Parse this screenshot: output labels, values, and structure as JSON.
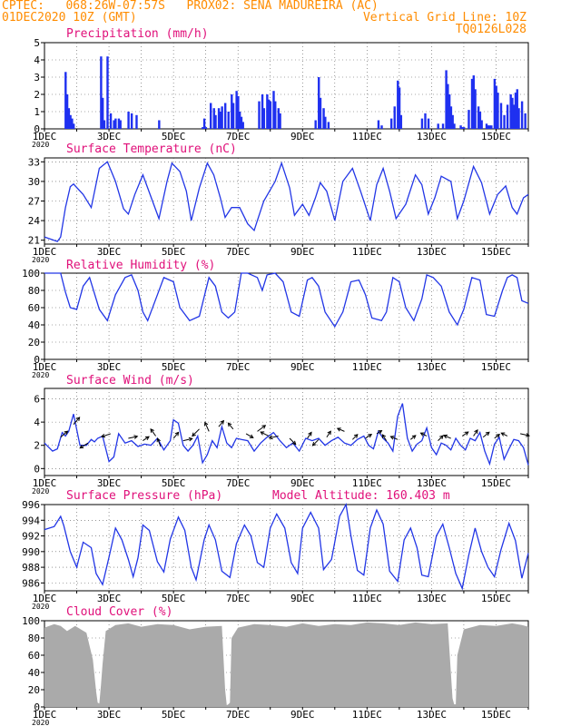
{
  "header": {
    "line1_left": "CPTEC:   068:26W-07:57S   PROX02: SENA MADUREIRA (AC)",
    "line2_left": "01DEC2020 10Z (GMT)",
    "line2_right": "Vertical Grid Line: 10Z",
    "line3_right": "TQ0126L028"
  },
  "colors": {
    "header": "#ff8c00",
    "title": "#e0107a",
    "line": "#2236e6",
    "bar": "#1f30f0",
    "cloud": "#aaaaaa",
    "frame": "#000000",
    "grid": "#555555"
  },
  "x_axis": {
    "start": "2020-12-01T10Z",
    "end": "2020-12-16T10Z",
    "tick_labels": [
      "1DEC",
      "3DEC",
      "5DEC",
      "7DEC",
      "9DEC",
      "11DEC",
      "13DEC",
      "15DEC"
    ],
    "tick_days": [
      0,
      2,
      4,
      6,
      8,
      10,
      12,
      14
    ],
    "year_label": "2020"
  },
  "chart_data": [
    {
      "id": "precip",
      "type": "bar",
      "title": "Precipitation (mm/h)",
      "ylim": [
        0,
        5
      ],
      "yticks": [
        0,
        1,
        2,
        3,
        4,
        5
      ],
      "grid": true,
      "bars": [
        [
          0.65,
          3.3
        ],
        [
          0.7,
          2.0
        ],
        [
          0.75,
          1.2
        ],
        [
          0.8,
          0.8
        ],
        [
          0.85,
          0.6
        ],
        [
          0.9,
          0.3
        ],
        [
          1.75,
          4.2
        ],
        [
          1.8,
          1.8
        ],
        [
          1.85,
          0.5
        ],
        [
          1.95,
          4.2
        ],
        [
          2.05,
          0.9
        ],
        [
          2.15,
          0.5
        ],
        [
          2.2,
          0.6
        ],
        [
          2.3,
          0.6
        ],
        [
          2.35,
          0.5
        ],
        [
          2.6,
          1.0
        ],
        [
          2.7,
          0.9
        ],
        [
          2.85,
          0.8
        ],
        [
          3.55,
          0.5
        ],
        [
          4.9,
          0.1
        ],
        [
          4.95,
          0.6
        ],
        [
          5.0,
          0.1
        ],
        [
          5.15,
          1.5
        ],
        [
          5.25,
          1.2
        ],
        [
          5.3,
          0.8
        ],
        [
          5.4,
          1.2
        ],
        [
          5.45,
          1.0
        ],
        [
          5.5,
          1.3
        ],
        [
          5.6,
          1.5
        ],
        [
          5.7,
          1.0
        ],
        [
          5.8,
          2.0
        ],
        [
          5.85,
          1.5
        ],
        [
          5.95,
          2.2
        ],
        [
          6.0,
          1.9
        ],
        [
          6.05,
          1.0
        ],
        [
          6.1,
          0.7
        ],
        [
          6.15,
          0.4
        ],
        [
          6.65,
          1.6
        ],
        [
          6.75,
          2.0
        ],
        [
          6.8,
          1.2
        ],
        [
          6.9,
          2.0
        ],
        [
          6.95,
          1.7
        ],
        [
          7.0,
          1.6
        ],
        [
          7.1,
          2.2
        ],
        [
          7.15,
          1.6
        ],
        [
          7.25,
          1.2
        ],
        [
          7.3,
          0.9
        ],
        [
          8.4,
          0.5
        ],
        [
          8.5,
          3.0
        ],
        [
          8.55,
          1.8
        ],
        [
          8.65,
          1.2
        ],
        [
          8.7,
          0.7
        ],
        [
          8.8,
          0.4
        ],
        [
          10.35,
          0.5
        ],
        [
          10.45,
          0.2
        ],
        [
          10.75,
          0.6
        ],
        [
          10.85,
          1.3
        ],
        [
          10.95,
          2.8
        ],
        [
          11.0,
          2.4
        ],
        [
          11.05,
          0.8
        ],
        [
          11.7,
          0.6
        ],
        [
          11.8,
          0.9
        ],
        [
          11.9,
          0.6
        ],
        [
          12.2,
          0.3
        ],
        [
          12.35,
          0.3
        ],
        [
          12.45,
          3.4
        ],
        [
          12.5,
          2.6
        ],
        [
          12.55,
          2.0
        ],
        [
          12.6,
          1.3
        ],
        [
          12.65,
          0.8
        ],
        [
          12.7,
          0.3
        ],
        [
          12.9,
          0.2
        ],
        [
          12.95,
          0.1
        ],
        [
          13.0,
          0.1
        ],
        [
          13.15,
          1.1
        ],
        [
          13.25,
          2.9
        ],
        [
          13.3,
          3.1
        ],
        [
          13.35,
          2.3
        ],
        [
          13.45,
          1.3
        ],
        [
          13.5,
          1.0
        ],
        [
          13.55,
          0.5
        ],
        [
          13.7,
          0.3
        ],
        [
          13.75,
          0.2
        ],
        [
          13.8,
          0.2
        ],
        [
          13.85,
          0.2
        ],
        [
          13.95,
          2.9
        ],
        [
          14.0,
          2.5
        ],
        [
          14.05,
          2.1
        ],
        [
          14.15,
          1.5
        ],
        [
          14.25,
          0.8
        ],
        [
          14.35,
          1.4
        ],
        [
          14.45,
          2.0
        ],
        [
          14.5,
          1.8
        ],
        [
          14.55,
          1.4
        ],
        [
          14.6,
          2.1
        ],
        [
          14.65,
          2.3
        ],
        [
          14.7,
          1.2
        ],
        [
          14.8,
          1.6
        ],
        [
          14.9,
          0.9
        ]
      ]
    },
    {
      "id": "temp",
      "type": "line",
      "title": "Surface Temperature (nC)",
      "ylim": [
        20.4,
        33.6
      ],
      "yticks": [
        21,
        24,
        27,
        30,
        33
      ],
      "grid": true,
      "x": [
        0,
        0.4,
        0.5,
        0.65,
        0.8,
        0.9,
        1.2,
        1.45,
        1.7,
        1.95,
        2.2,
        2.45,
        2.6,
        2.8,
        3.05,
        3.2,
        3.55,
        3.8,
        3.95,
        4.2,
        4.4,
        4.55,
        4.8,
        5.05,
        5.25,
        5.45,
        5.6,
        5.8,
        6.05,
        6.3,
        6.5,
        6.6,
        6.8,
        7.15,
        7.35,
        7.6,
        7.75,
        8.0,
        8.2,
        8.4,
        8.55,
        8.75,
        9.0,
        9.25,
        9.55,
        9.8,
        10.1,
        10.3,
        10.5,
        10.7,
        10.9,
        11.2,
        11.5,
        11.7,
        11.9,
        12.1,
        12.3,
        12.6,
        12.8,
        13.0,
        13.3,
        13.55,
        13.8,
        14.05,
        14.3,
        14.5,
        14.65,
        14.85,
        15.0
      ],
      "y": [
        21.5,
        20.8,
        21.5,
        26.0,
        29.2,
        29.6,
        28.0,
        26.0,
        32.0,
        33.0,
        30.0,
        25.8,
        25.0,
        28.0,
        31.0,
        29.0,
        24.3,
        30.0,
        32.8,
        31.5,
        28.5,
        24.0,
        29.0,
        32.8,
        31.0,
        27.5,
        24.5,
        26.0,
        26.0,
        23.5,
        22.5,
        24.0,
        27.0,
        30.0,
        32.8,
        29.0,
        24.8,
        26.5,
        24.8,
        27.5,
        29.8,
        28.5,
        24.0,
        30.0,
        32.0,
        28.5,
        24.0,
        29.5,
        32.0,
        28.5,
        24.3,
        26.5,
        31.0,
        29.5,
        25.0,
        27.5,
        30.8,
        30.0,
        24.3,
        27.0,
        32.3,
        29.8,
        25.0,
        28.0,
        29.3,
        26.0,
        25.0,
        27.5,
        28.0
      ]
    },
    {
      "id": "rh",
      "type": "line",
      "title": "Relative Humidity (%)",
      "ylim": [
        0,
        100
      ],
      "yticks": [
        0,
        20,
        40,
        60,
        80,
        100
      ],
      "grid": true,
      "x": [
        0,
        0.3,
        0.5,
        0.65,
        0.8,
        1.0,
        1.2,
        1.4,
        1.7,
        1.95,
        2.2,
        2.5,
        2.7,
        2.9,
        3.05,
        3.2,
        3.5,
        3.7,
        4.0,
        4.2,
        4.5,
        4.8,
        5.1,
        5.3,
        5.5,
        5.7,
        5.9,
        6.1,
        6.3,
        6.6,
        6.75,
        6.9,
        7.15,
        7.4,
        7.65,
        7.9,
        8.15,
        8.3,
        8.5,
        8.7,
        9.0,
        9.25,
        9.5,
        9.75,
        9.95,
        10.15,
        10.45,
        10.6,
        10.8,
        11.0,
        11.2,
        11.45,
        11.7,
        11.85,
        12.05,
        12.3,
        12.55,
        12.8,
        13.0,
        13.25,
        13.5,
        13.7,
        13.95,
        14.2,
        14.35,
        14.5,
        14.65,
        14.8,
        15.0
      ],
      "y": [
        100,
        100,
        100,
        78,
        60,
        58,
        85,
        95,
        58,
        45,
        75,
        95,
        98,
        80,
        55,
        45,
        75,
        95,
        90,
        60,
        45,
        50,
        95,
        85,
        55,
        48,
        55,
        100,
        100,
        95,
        80,
        98,
        100,
        90,
        55,
        50,
        92,
        95,
        85,
        55,
        38,
        55,
        90,
        92,
        75,
        48,
        45,
        55,
        95,
        90,
        60,
        45,
        70,
        98,
        95,
        85,
        55,
        40,
        58,
        95,
        92,
        52,
        50,
        80,
        95,
        98,
        95,
        68,
        65
      ]
    },
    {
      "id": "wind",
      "type": "line",
      "title": "Surface Wind (m/s)",
      "ylim": [
        -0.6,
        6.9
      ],
      "yticks": [
        0,
        2,
        4,
        6
      ],
      "grid": true,
      "x": [
        0,
        0.25,
        0.4,
        0.55,
        0.65,
        0.75,
        0.9,
        1.1,
        1.3,
        1.45,
        1.55,
        1.65,
        1.8,
        2.0,
        2.15,
        2.3,
        2.5,
        2.7,
        2.9,
        3.1,
        3.3,
        3.5,
        3.7,
        3.9,
        4.0,
        4.15,
        4.3,
        4.45,
        4.6,
        4.75,
        4.9,
        5.05,
        5.2,
        5.35,
        5.5,
        5.65,
        5.8,
        5.95,
        6.1,
        6.3,
        6.5,
        6.7,
        6.9,
        7.1,
        7.3,
        7.5,
        7.7,
        7.9,
        8.1,
        8.3,
        8.5,
        8.7,
        8.9,
        9.1,
        9.3,
        9.5,
        9.7,
        9.9,
        10.05,
        10.2,
        10.35,
        10.5,
        10.65,
        10.8,
        10.95,
        11.1,
        11.25,
        11.4,
        11.55,
        11.7,
        11.85,
        12.0,
        12.15,
        12.3,
        12.45,
        12.6,
        12.75,
        12.9,
        13.05,
        13.2,
        13.35,
        13.5,
        13.65,
        13.8,
        13.95,
        14.1,
        14.25,
        14.4,
        14.55,
        14.7,
        14.85,
        15.0
      ],
      "y": [
        2.2,
        1.5,
        1.7,
        3.1,
        2.8,
        3.2,
        4.7,
        2.0,
        2.0,
        2.5,
        2.3,
        2.6,
        2.8,
        0.6,
        1.0,
        3.0,
        2.2,
        2.4,
        1.9,
        2.1,
        2.0,
        2.6,
        1.6,
        2.4,
        4.2,
        3.9,
        2.0,
        1.5,
        2.0,
        2.8,
        0.5,
        1.2,
        2.4,
        1.8,
        3.6,
        2.2,
        1.8,
        2.6,
        2.5,
        2.4,
        1.5,
        2.2,
        2.7,
        3.1,
        2.4,
        1.8,
        2.2,
        1.5,
        2.6,
        2.4,
        2.6,
        2.0,
        2.4,
        2.7,
        2.2,
        2.0,
        2.5,
        2.8,
        2.0,
        1.7,
        3.2,
        2.6,
        2.2,
        1.5,
        4.5,
        5.6,
        2.6,
        1.5,
        2.1,
        2.4,
        3.5,
        1.8,
        1.2,
        2.2,
        2.0,
        1.6,
        2.6,
        2.0,
        1.6,
        2.6,
        2.4,
        3.1,
        1.5,
        0.4,
        2.1,
        2.7,
        0.8,
        1.7,
        2.5,
        2.4,
        1.8,
        0.3
      ]
    },
    {
      "id": "pressure",
      "type": "line",
      "title": "Surface Pressure (hPa)",
      "annotation": "Model Altitude: 160.403 m",
      "ylim": [
        985.0,
        996.0
      ],
      "yticks": [
        986,
        988,
        990,
        992,
        994,
        996
      ],
      "grid": true,
      "x": [
        0,
        0.3,
        0.5,
        0.6,
        0.8,
        1.0,
        1.2,
        1.45,
        1.6,
        1.8,
        2.0,
        2.2,
        2.4,
        2.6,
        2.75,
        2.9,
        3.05,
        3.25,
        3.5,
        3.7,
        3.9,
        4.15,
        4.35,
        4.55,
        4.7,
        4.95,
        5.1,
        5.3,
        5.5,
        5.75,
        5.95,
        6.2,
        6.4,
        6.6,
        6.8,
        7.0,
        7.2,
        7.45,
        7.65,
        7.85,
        8.0,
        8.25,
        8.5,
        8.65,
        8.9,
        9.15,
        9.35,
        9.5,
        9.7,
        9.9,
        10.1,
        10.3,
        10.5,
        10.7,
        10.95,
        11.15,
        11.35,
        11.55,
        11.7,
        11.9,
        12.15,
        12.35,
        12.55,
        12.75,
        12.95,
        13.15,
        13.35,
        13.55,
        13.75,
        13.95,
        14.15,
        14.4,
        14.6,
        14.8,
        15.0
      ],
      "y": [
        992.8,
        993.2,
        994.5,
        993.3,
        990.0,
        988.0,
        991.2,
        990.5,
        987.2,
        985.8,
        989.3,
        993.0,
        991.5,
        989.0,
        986.8,
        989.2,
        993.4,
        992.7,
        988.7,
        987.4,
        991.6,
        994.4,
        992.7,
        988.0,
        986.4,
        991.5,
        993.4,
        991.5,
        987.5,
        986.7,
        991.0,
        993.4,
        992.0,
        988.6,
        988.0,
        993.0,
        994.8,
        993.0,
        988.6,
        987.2,
        993.0,
        995.0,
        993.0,
        987.7,
        989.0,
        994.5,
        996.0,
        992.0,
        987.6,
        987.0,
        993.0,
        995.3,
        993.5,
        987.5,
        986.2,
        991.5,
        993.0,
        990.5,
        987.0,
        986.8,
        992.0,
        993.5,
        990.5,
        987.2,
        985.3,
        989.5,
        993.0,
        990.0,
        988.0,
        986.8,
        990.2,
        993.6,
        991.4,
        986.6,
        989.8
      ]
    },
    {
      "id": "cloud",
      "type": "area",
      "title": "Cloud Cover (%)",
      "ylim": [
        0,
        100
      ],
      "yticks": [
        0,
        20,
        40,
        60,
        80,
        100
      ],
      "grid": true,
      "x": [
        0,
        0.3,
        0.5,
        0.7,
        0.95,
        1.3,
        1.5,
        1.6,
        1.65,
        1.7,
        1.75,
        1.8,
        1.9,
        2.2,
        2.6,
        3.0,
        3.5,
        4.0,
        4.5,
        5.0,
        5.5,
        5.6,
        5.65,
        5.7,
        5.75,
        5.8,
        6.0,
        6.5,
        7.0,
        7.5,
        8.0,
        8.5,
        9.0,
        9.5,
        10.0,
        10.5,
        11.0,
        11.5,
        12.0,
        12.5,
        12.65,
        12.7,
        12.75,
        12.8,
        13.0,
        13.5,
        14.0,
        14.5,
        14.8,
        15.0
      ],
      "y": [
        92,
        96,
        94,
        88,
        94,
        86,
        55,
        18,
        5,
        4,
        25,
        50,
        88,
        95,
        97,
        93,
        96,
        95,
        90,
        93,
        94,
        20,
        2,
        3,
        5,
        80,
        92,
        96,
        95,
        93,
        97,
        94,
        96,
        95,
        98,
        97,
        95,
        98,
        96,
        97,
        10,
        3,
        3,
        60,
        90,
        95,
        94,
        97,
        95,
        93
      ]
    }
  ],
  "wind_vectors": {
    "x": [
      0.5,
      0.9,
      1.35,
      2.05,
      2.6,
      3.05,
      3.45,
      3.6,
      4.0,
      4.3,
      4.8,
      5.1,
      5.4,
      5.85,
      6.25,
      6.6,
      6.95,
      7.25,
      7.6,
      8.15,
      8.5,
      8.75,
      9.3,
      9.55,
      9.95,
      10.3,
      10.6,
      10.95,
      11.35,
      11.85,
      12.2,
      12.6,
      12.95,
      13.3,
      13.6,
      13.95,
      14.35,
      14.75
    ],
    "y": [
      2.7,
      3.8,
      2.2,
      3.0,
      2.6,
      2.4,
      2.8,
      1.9,
      2.6,
      2.4,
      3.4,
      3.2,
      3.6,
      3.4,
      3.0,
      3.2,
      2.8,
      2.8,
      2.6,
      2.6,
      2.5,
      2.7,
      3.2,
      2.5,
      2.6,
      3.0,
      2.4,
      2.5,
      2.5,
      2.8,
      2.4,
      2.6,
      2.8,
      2.8,
      2.7,
      2.6,
      2.8,
      3.0
    ],
    "u": [
      0.7,
      0.6,
      -0.8,
      -0.9,
      0.9,
      0.6,
      -0.5,
      -0.3,
      0.5,
      0.9,
      -0.7,
      -0.4,
      0.5,
      -0.5,
      0.7,
      0.8,
      -0.8,
      -0.9,
      0.6,
      0.4,
      -0.6,
      0.4,
      -0.7,
      0.5,
      0.6,
      0.5,
      -0.4,
      -0.7,
      0.5,
      -0.6,
      0.5,
      -0.7,
      0.6,
      0.4,
      0.6,
      0.5,
      -0.6,
      0.9
    ],
    "v": [
      0.6,
      0.7,
      -0.5,
      -0.3,
      0.2,
      0.4,
      0.7,
      0.8,
      0.6,
      0.2,
      -0.7,
      0.9,
      0.6,
      0.6,
      -0.4,
      0.6,
      0.4,
      -0.2,
      -0.6,
      0.6,
      -0.6,
      0.6,
      0.3,
      0.5,
      0.4,
      0.3,
      0.6,
      0.3,
      0.4,
      0.3,
      0.5,
      0.3,
      0.4,
      0.6,
      0.5,
      0.4,
      0.3,
      -0.2
    ]
  }
}
